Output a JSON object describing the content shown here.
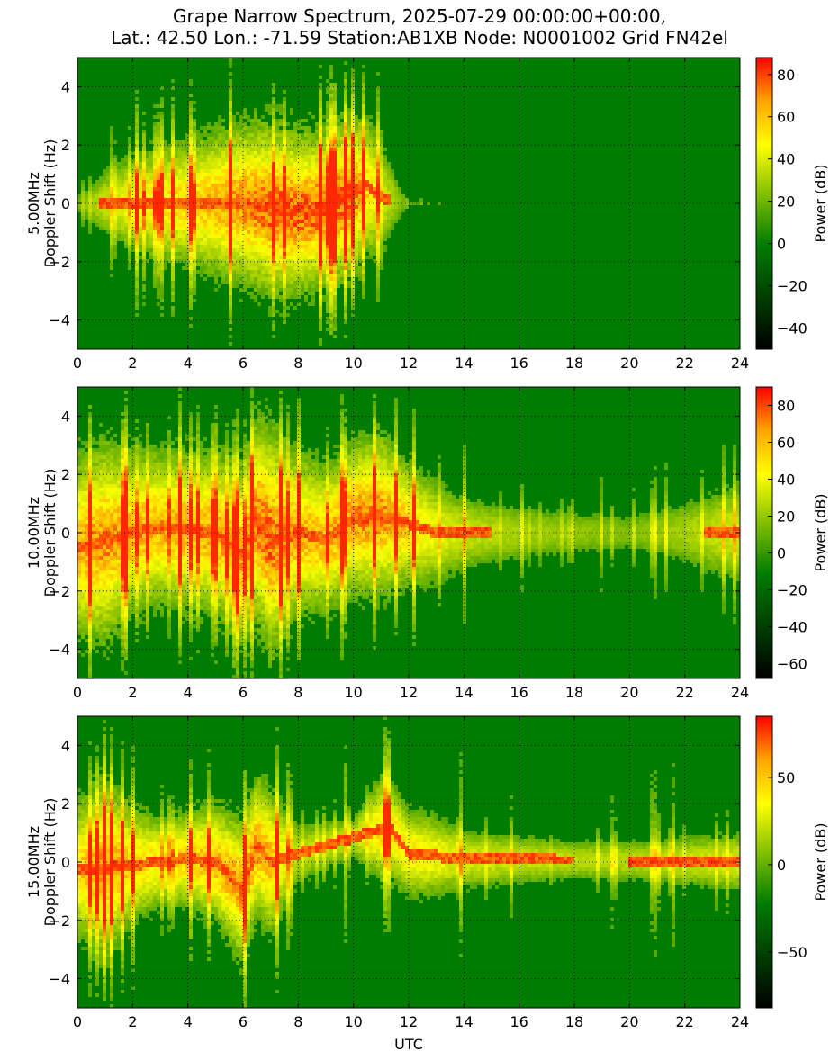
{
  "title": {
    "line1": "Grape Narrow Spectrum, 2025-07-29 00:00:00+00:00,",
    "line2": "Lat.: 42.50 Lon.: -71.59 Station:AB1XB Node: N0001002 Grid FN42el"
  },
  "xlabel": "UTC",
  "colormap": [
    "#000000",
    "#007d00",
    "#ffff00",
    "#ffa500",
    "#ff0000"
  ],
  "chart_data": [
    {
      "type": "heatmap",
      "ylabel": "5.00MHz\nDoppler Shift (Hz)",
      "x_ticks": [
        0,
        2,
        4,
        6,
        8,
        10,
        12,
        14,
        16,
        18,
        20,
        22,
        24
      ],
      "xlim": [
        0,
        24
      ],
      "y_ticks": [
        -4,
        -2,
        0,
        2,
        4
      ],
      "ylim": [
        -5,
        5
      ],
      "grid": true,
      "colorbar": {
        "label": "Power (dB)",
        "range": [
          -50,
          88
        ],
        "ticks": [
          -40,
          -20,
          0,
          20,
          40,
          60,
          80
        ]
      },
      "activity": [
        {
          "t": 0,
          "amp": 0.3,
          "width": 0.3
        },
        {
          "t": 1,
          "amp": 0.55,
          "width": 0.8
        },
        {
          "t": 2,
          "amp": 0.7,
          "width": 1.1
        },
        {
          "t": 3,
          "amp": 0.75,
          "width": 1.3
        },
        {
          "t": 4,
          "amp": 0.8,
          "width": 1.4
        },
        {
          "t": 5,
          "amp": 0.85,
          "width": 1.6
        },
        {
          "t": 6,
          "amp": 0.9,
          "width": 1.8
        },
        {
          "t": 7,
          "amp": 0.95,
          "width": 1.9
        },
        {
          "t": 8,
          "amp": 0.95,
          "width": 1.8
        },
        {
          "t": 9,
          "amp": 0.95,
          "width": 1.7
        },
        {
          "t": 10,
          "amp": 0.95,
          "width": 1.8
        },
        {
          "t": 11,
          "amp": 0.6,
          "width": 1.4
        },
        {
          "t": 12,
          "amp": 0.25,
          "width": 0.1
        },
        {
          "t": 14,
          "amp": 0.1,
          "width": 0.05
        },
        {
          "t": 16,
          "amp": 0.0,
          "width": 0
        },
        {
          "t": 24,
          "amp": 0.0,
          "width": 0
        }
      ],
      "trace": [
        [
          0,
          0
        ],
        [
          2,
          0
        ],
        [
          4,
          0
        ],
        [
          6,
          0
        ],
        [
          7,
          -0.2
        ],
        [
          8,
          -0.3
        ],
        [
          9,
          -0.2
        ],
        [
          10,
          0.3
        ],
        [
          10.5,
          0.6
        ],
        [
          11,
          0.2
        ],
        [
          12,
          0
        ]
      ]
    },
    {
      "type": "heatmap",
      "ylabel": "10.00MHz\nDoppler Shift (Hz)",
      "x_ticks": [
        0,
        2,
        4,
        6,
        8,
        10,
        12,
        14,
        16,
        18,
        20,
        22,
        24
      ],
      "xlim": [
        0,
        24
      ],
      "y_ticks": [
        -4,
        -2,
        0,
        2,
        4
      ],
      "ylim": [
        -5,
        5
      ],
      "grid": true,
      "colorbar": {
        "label": "Power (dB)",
        "range": [
          -68,
          90
        ],
        "ticks": [
          -60,
          -40,
          -20,
          0,
          20,
          40,
          60,
          80
        ]
      },
      "activity": [
        {
          "t": 0,
          "amp": 0.85,
          "width": 2.0
        },
        {
          "t": 1,
          "amp": 0.9,
          "width": 2.2
        },
        {
          "t": 2,
          "amp": 0.85,
          "width": 1.8
        },
        {
          "t": 3,
          "amp": 0.85,
          "width": 1.7
        },
        {
          "t": 4,
          "amp": 0.85,
          "width": 1.8
        },
        {
          "t": 5,
          "amp": 0.85,
          "width": 1.8
        },
        {
          "t": 6,
          "amp": 0.9,
          "width": 2.0
        },
        {
          "t": 7,
          "amp": 0.95,
          "width": 2.5
        },
        {
          "t": 8,
          "amp": 0.85,
          "width": 1.8
        },
        {
          "t": 9,
          "amp": 0.85,
          "width": 1.6
        },
        {
          "t": 10,
          "amp": 0.9,
          "width": 1.7
        },
        {
          "t": 11,
          "amp": 0.9,
          "width": 1.8
        },
        {
          "t": 12,
          "amp": 0.8,
          "width": 1.4
        },
        {
          "t": 13,
          "amp": 0.65,
          "width": 1.2
        },
        {
          "t": 14,
          "amp": 0.55,
          "width": 0.9
        },
        {
          "t": 16,
          "amp": 0.45,
          "width": 0.7
        },
        {
          "t": 18,
          "amp": 0.4,
          "width": 0.6
        },
        {
          "t": 20,
          "amp": 0.35,
          "width": 0.5
        },
        {
          "t": 22,
          "amp": 0.45,
          "width": 0.8
        },
        {
          "t": 24,
          "amp": 0.6,
          "width": 1.2
        }
      ],
      "trace": [
        [
          0,
          -0.5
        ],
        [
          1,
          -0.3
        ],
        [
          2,
          0
        ],
        [
          3,
          0.2
        ],
        [
          4,
          0.1
        ],
        [
          5,
          0
        ],
        [
          6,
          -0.8
        ],
        [
          6.5,
          0.5
        ],
        [
          7,
          -0.3
        ],
        [
          8,
          0
        ],
        [
          9,
          -0.2
        ],
        [
          10,
          0.5
        ],
        [
          11,
          0.6
        ],
        [
          12,
          0.3
        ],
        [
          13,
          0
        ],
        [
          24,
          0
        ]
      ]
    },
    {
      "type": "heatmap",
      "ylabel": "15.00MHz\nDoppler Shift (Hz)",
      "x_ticks": [
        0,
        2,
        4,
        6,
        8,
        10,
        12,
        14,
        16,
        18,
        20,
        22,
        24
      ],
      "xlim": [
        0,
        24
      ],
      "y_ticks": [
        -4,
        -2,
        0,
        2,
        4
      ],
      "ylim": [
        -5,
        5
      ],
      "grid": true,
      "colorbar": {
        "label": "Power (dB)",
        "range": [
          -82,
          85
        ],
        "ticks": [
          -50,
          0,
          50
        ]
      },
      "activity": [
        {
          "t": 0,
          "amp": 0.8,
          "width": 1.5
        },
        {
          "t": 1,
          "amp": 0.9,
          "width": 2.0
        },
        {
          "t": 2,
          "amp": 0.8,
          "width": 1.3
        },
        {
          "t": 3,
          "amp": 0.75,
          "width": 1.0
        },
        {
          "t": 4,
          "amp": 0.8,
          "width": 1.1
        },
        {
          "t": 5,
          "amp": 0.85,
          "width": 1.3
        },
        {
          "t": 6,
          "amp": 0.9,
          "width": 1.6
        },
        {
          "t": 7,
          "amp": 0.85,
          "width": 1.6
        },
        {
          "t": 8,
          "amp": 0.5,
          "width": 0.8
        },
        {
          "t": 9,
          "amp": 0.55,
          "width": 0.6
        },
        {
          "t": 10,
          "amp": 0.55,
          "width": 0.5
        },
        {
          "t": 11,
          "amp": 0.8,
          "width": 1.2
        },
        {
          "t": 12,
          "amp": 0.75,
          "width": 1.0
        },
        {
          "t": 13,
          "amp": 0.7,
          "width": 0.9
        },
        {
          "t": 14,
          "amp": 0.6,
          "width": 0.7
        },
        {
          "t": 16,
          "amp": 0.55,
          "width": 0.6
        },
        {
          "t": 18,
          "amp": 0.5,
          "width": 0.5
        },
        {
          "t": 20,
          "amp": 0.5,
          "width": 0.5
        },
        {
          "t": 22,
          "amp": 0.55,
          "width": 0.6
        },
        {
          "t": 24,
          "amp": 0.6,
          "width": 0.7
        }
      ],
      "trace": [
        [
          0,
          -0.3
        ],
        [
          1,
          -0.2
        ],
        [
          2,
          -0.1
        ],
        [
          3,
          0
        ],
        [
          4,
          0.1
        ],
        [
          5,
          0
        ],
        [
          6,
          -1.0
        ],
        [
          6.5,
          0.6
        ],
        [
          7,
          0
        ],
        [
          11.3,
          1.2
        ],
        [
          12,
          0.3
        ],
        [
          14,
          0.1
        ],
        [
          24,
          0
        ]
      ]
    }
  ]
}
